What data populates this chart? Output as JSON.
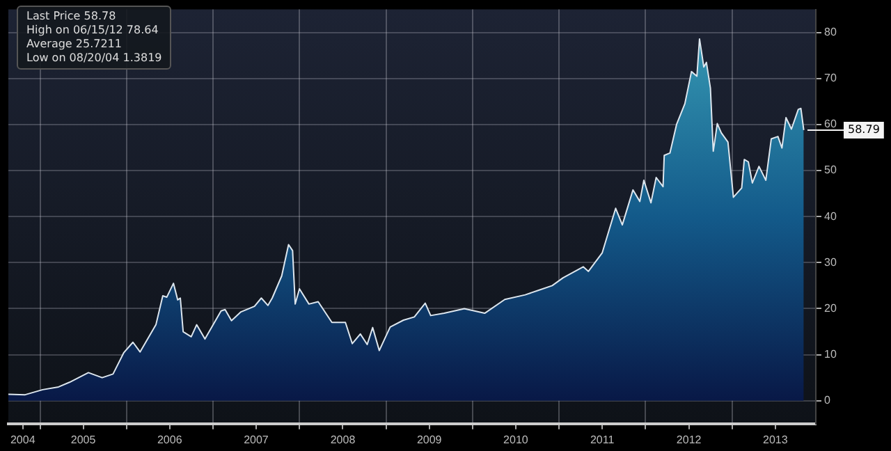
{
  "chart_data": {
    "type": "area",
    "x": [
      "2004-08-20",
      "2004-10-30",
      "2005-01-12",
      "2005-03-20",
      "2005-05-05",
      "2005-07-24",
      "2005-09-20",
      "2005-11-05",
      "2005-12-20",
      "2006-01-28",
      "2006-02-27",
      "2006-05-05",
      "2006-06-03",
      "2006-06-20",
      "2006-07-18",
      "2006-08-05",
      "2006-08-16",
      "2006-08-28",
      "2006-10-01",
      "2006-10-24",
      "2006-11-28",
      "2007-02-04",
      "2007-02-21",
      "2007-03-20",
      "2007-04-29",
      "2007-06-25",
      "2007-07-24",
      "2007-08-21",
      "2007-09-08",
      "2007-10-18",
      "2007-11-16",
      "2007-12-03",
      "2007-12-14",
      "2008-01-01",
      "2008-02-10",
      "2008-03-20",
      "2008-05-17",
      "2008-07-13",
      "2008-08-11",
      "2008-09-14",
      "2008-10-13",
      "2008-11-05",
      "2008-12-03",
      "2009-01-18",
      "2009-03-15",
      "2009-04-30",
      "2009-06-15",
      "2009-07-08",
      "2009-09-03",
      "2009-11-27",
      "2010-02-21",
      "2010-05-17",
      "2010-08-11",
      "2010-10-07",
      "2010-12-03",
      "2011-01-18",
      "2011-04-13",
      "2011-05-05",
      "2011-07-02",
      "2011-08-28",
      "2011-09-25",
      "2011-11-09",
      "2011-12-08",
      "2011-12-25",
      "2012-01-24",
      "2012-02-15",
      "2012-03-15",
      "2012-03-20",
      "2012-04-13",
      "2012-05-11",
      "2012-06-15",
      "2012-07-13",
      "2012-08-05",
      "2012-08-16",
      "2012-09-03",
      "2012-09-14",
      "2012-10-01",
      "2012-10-13",
      "2012-10-30",
      "2012-11-16",
      "2012-12-14",
      "2013-01-06",
      "2013-02-10",
      "2013-02-21",
      "2013-03-10",
      "2013-03-27",
      "2013-04-24",
      "2013-05-23",
      "2013-06-15",
      "2013-07-13",
      "2013-07-30",
      "2013-08-16",
      "2013-09-08",
      "2013-10-07",
      "2013-10-18",
      "2013-10-30"
    ],
    "series": [
      {
        "color": "#dde6ee",
        "values": [
          1.4,
          1.3,
          2.4,
          3.0,
          4.0,
          6.1,
          5.0,
          5.8,
          10.4,
          12.7,
          10.6,
          16.5,
          22.8,
          22.5,
          25.5,
          21.9,
          22.3,
          15.0,
          13.9,
          16.5,
          13.4,
          19.5,
          19.8,
          17.4,
          19.3,
          20.5,
          22.3,
          20.7,
          22.3,
          27.1,
          33.9,
          32.6,
          21.0,
          24.3,
          21.0,
          21.5,
          17.0,
          17.0,
          12.4,
          14.5,
          12.2,
          15.9,
          10.9,
          16.0,
          17.5,
          18.2,
          21.2,
          18.5,
          19.0,
          20.0,
          19.0,
          22.0,
          23.0,
          24.0,
          25.0,
          26.7,
          29.1,
          28.1,
          32.1,
          41.8,
          38.2,
          45.8,
          43.3,
          47.9,
          43.0,
          48.5,
          46.5,
          53.3,
          53.8,
          60.0,
          64.5,
          71.5,
          70.5,
          78.6,
          72.5,
          73.5,
          67.9,
          54.2,
          60.2,
          58.2,
          56.2,
          44.2,
          46.2,
          52.4,
          51.9,
          47.3,
          50.9,
          47.9,
          56.9,
          57.4,
          54.9,
          61.5,
          59.0,
          63.3,
          63.5,
          58.8
        ]
      }
    ],
    "xlim": [
      "2004-08-20",
      "2013-12-20"
    ],
    "xticks": [
      {
        "value": "2004-10-20",
        "label": "2004"
      },
      {
        "value": "2005-01-01",
        "label": null
      },
      {
        "value": "2005-07-02",
        "label": "2005"
      },
      {
        "value": "2006-01-01",
        "label": null
      },
      {
        "value": "2006-07-02",
        "label": "2006"
      },
      {
        "value": "2007-01-01",
        "label": null
      },
      {
        "value": "2007-07-02",
        "label": "2007"
      },
      {
        "value": "2008-01-01",
        "label": null
      },
      {
        "value": "2008-07-02",
        "label": "2008"
      },
      {
        "value": "2009-01-01",
        "label": null
      },
      {
        "value": "2009-07-02",
        "label": "2009"
      },
      {
        "value": "2010-01-01",
        "label": null
      },
      {
        "value": "2010-07-02",
        "label": "2010"
      },
      {
        "value": "2011-01-01",
        "label": null
      },
      {
        "value": "2011-07-02",
        "label": "2011"
      },
      {
        "value": "2012-01-01",
        "label": null
      },
      {
        "value": "2012-07-02",
        "label": "2012"
      },
      {
        "value": "2013-01-01",
        "label": null
      },
      {
        "value": "2013-07-02",
        "label": "2013"
      }
    ],
    "ylim": [
      -5,
      85
    ],
    "yticks": [
      0,
      10,
      20,
      30,
      40,
      50,
      60,
      70,
      80
    ],
    "grid": true,
    "legend": false,
    "marker": "none",
    "line_style": "solid",
    "annotations": [
      "Last Price 58.78",
      "High on 06/15/12 78.64",
      "Average 25.7211",
      "Low on 08/20/04 1.3819"
    ],
    "ref_lines": [
      {
        "axis": "y",
        "value": 58.79,
        "label": "58.79"
      }
    ]
  }
}
